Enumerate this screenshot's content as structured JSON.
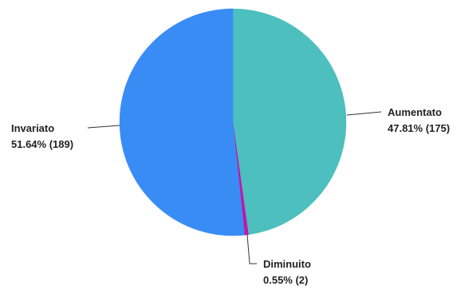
{
  "chart_data": {
    "type": "pie",
    "slices": [
      {
        "name": "Aumentato",
        "percent": 47.81,
        "count": 175,
        "value_label": "47.81% (175)",
        "color": "#4cbfbe"
      },
      {
        "name": "Diminuito",
        "percent": 0.55,
        "count": 2,
        "value_label": "0.55% (2)",
        "color": "#c218a8"
      },
      {
        "name": "Invariato",
        "percent": 51.64,
        "count": 189,
        "value_label": "51.64% (189)",
        "color": "#3a8cf5"
      }
    ],
    "start_angle": "12 o'clock",
    "direction": "clockwise",
    "legend": "none",
    "labels": "outside with leader lines"
  }
}
